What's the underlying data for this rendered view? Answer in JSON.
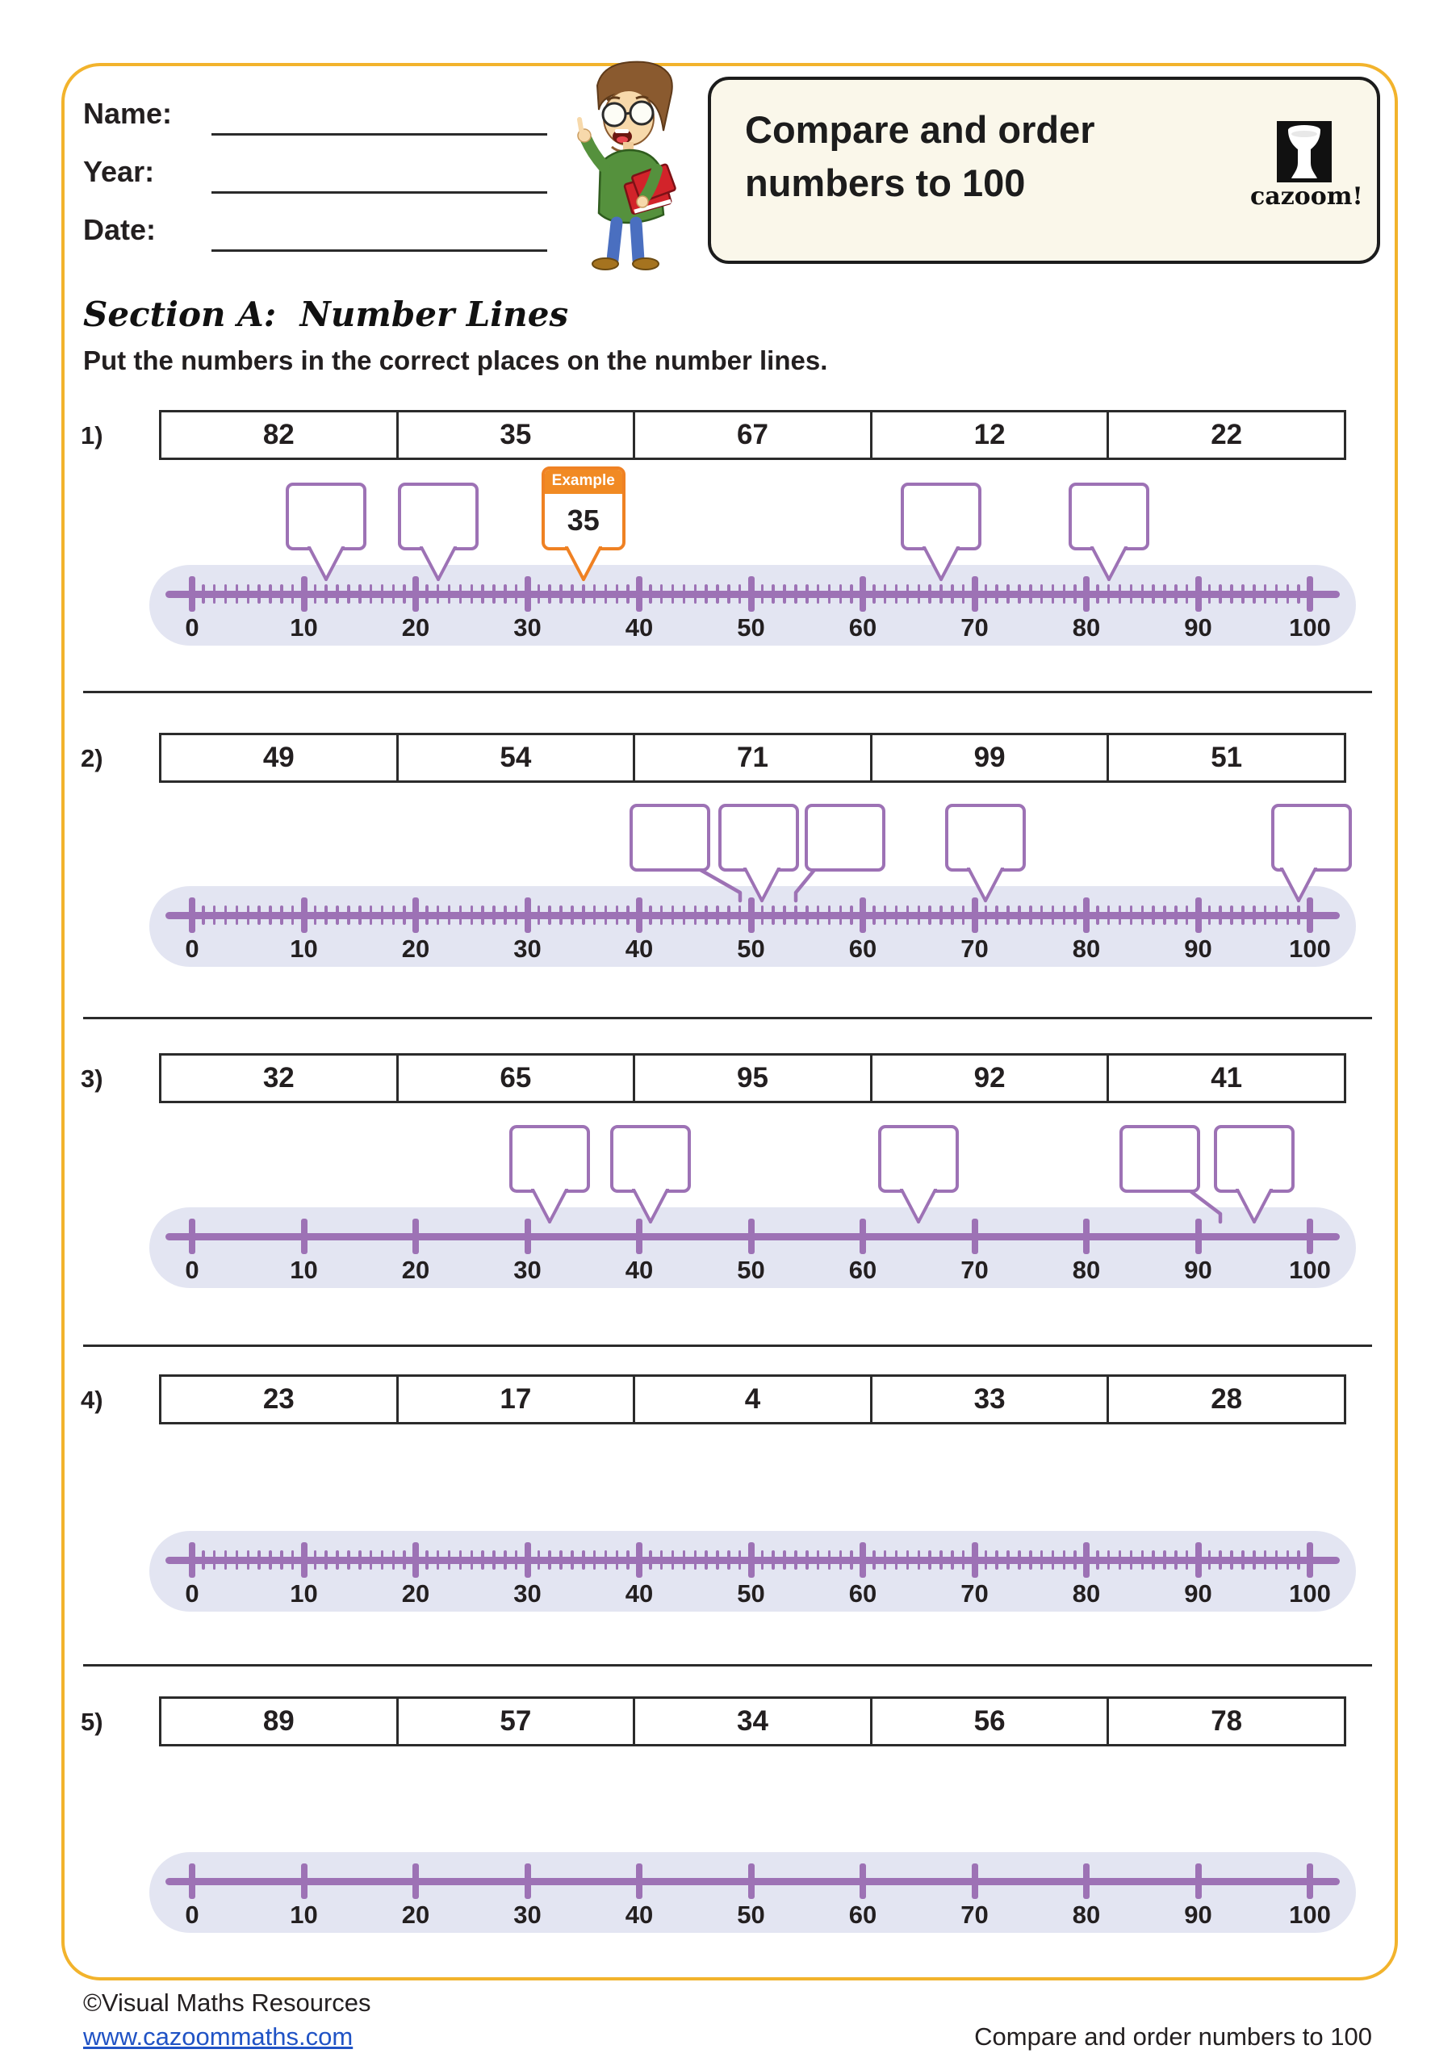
{
  "header": {
    "name_label": "Name:",
    "year_label": "Year:",
    "date_label": "Date:",
    "title_line1": "Compare and order",
    "title_line2": "numbers to 100",
    "logo_text": "cazoom!"
  },
  "section": {
    "heading": "Section A:  Number Lines",
    "instruction": "Put the numbers in the correct places on the number lines."
  },
  "example_label": "Example",
  "axis": {
    "min": 0,
    "max": 100,
    "step": 10,
    "tick_labels": [
      "0",
      "10",
      "20",
      "30",
      "40",
      "50",
      "60",
      "70",
      "80",
      "90",
      "100"
    ]
  },
  "problems": [
    {
      "label": "1)",
      "numbers": [
        "82",
        "35",
        "67",
        "12",
        "22"
      ],
      "minor_ticks": true,
      "callouts": [
        {
          "points_to": 12,
          "shift": 0
        },
        {
          "points_to": 22,
          "shift": 0
        },
        {
          "points_to": 35,
          "shift": 0,
          "example": true,
          "value_shown": "35"
        },
        {
          "points_to": 67,
          "shift": 0
        },
        {
          "points_to": 82,
          "shift": 0
        }
      ]
    },
    {
      "label": "2)",
      "numbers": [
        "49",
        "54",
        "71",
        "99",
        "51"
      ],
      "minor_ticks": true,
      "callouts": [
        {
          "points_to": 49,
          "shift": -87
        },
        {
          "points_to": 51,
          "shift": -4
        },
        {
          "points_to": 54,
          "shift": 61
        },
        {
          "points_to": 71,
          "shift": 0
        },
        {
          "points_to": 99,
          "shift": 16
        }
      ]
    },
    {
      "label": "3)",
      "numbers": [
        "32",
        "65",
        "95",
        "92",
        "41"
      ],
      "minor_ticks": false,
      "callouts": [
        {
          "points_to": 32,
          "shift": 0
        },
        {
          "points_to": 41,
          "shift": 0
        },
        {
          "points_to": 65,
          "shift": 0
        },
        {
          "points_to": 92,
          "shift": -75
        },
        {
          "points_to": 95,
          "shift": 0
        }
      ]
    },
    {
      "label": "4)",
      "numbers": [
        "23",
        "17",
        "4",
        "33",
        "28"
      ],
      "minor_ticks": true,
      "callouts": []
    },
    {
      "label": "5)",
      "numbers": [
        "89",
        "57",
        "34",
        "56",
        "78"
      ],
      "minor_ticks": false,
      "callouts": []
    }
  ],
  "footer": {
    "copyright": "©Visual Maths Resources",
    "website": "www.cazoommaths.com",
    "worksheet_title": "Compare and order numbers to 100"
  },
  "colors": {
    "purple": "#9d72b5",
    "band_lavender": "#e3e5f2",
    "example_orange": "#ef8123",
    "page_border_yellow": "#f2b32c",
    "title_box_cream": "#faf7ea",
    "link_blue": "#2053c5"
  }
}
